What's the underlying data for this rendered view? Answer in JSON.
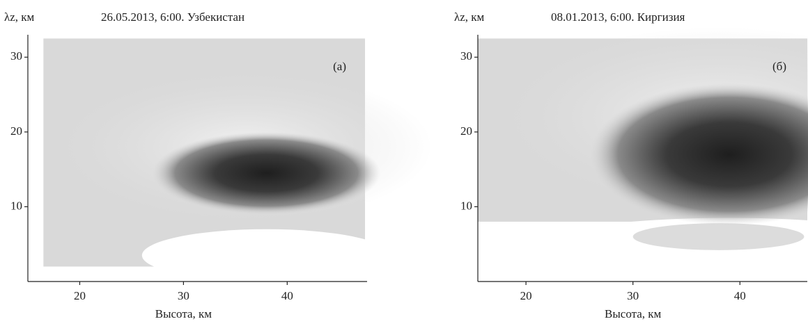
{
  "chart_data": [
    {
      "type": "heatmap",
      "title": "26.05.2013, 6:00. Узбекистан",
      "panel_label": "(а)",
      "xlabel": "Высота, км",
      "ylabel": "λz, км",
      "xlim": [
        15,
        47.7
      ],
      "ylim": [
        0,
        33
      ],
      "xticks": [
        20,
        30,
        40
      ],
      "yticks": [
        10,
        20,
        30
      ]
    },
    {
      "type": "heatmap",
      "title": "08.01.2013, 6:00. Киргизия",
      "panel_label": "(б)",
      "xlabel": "Высота, км",
      "ylabel": "λz, км",
      "xlim": [
        15.5,
        46.3
      ],
      "ylim": [
        0,
        33
      ],
      "xticks": [
        20,
        30,
        40
      ],
      "yticks": [
        10,
        20,
        30
      ]
    }
  ]
}
